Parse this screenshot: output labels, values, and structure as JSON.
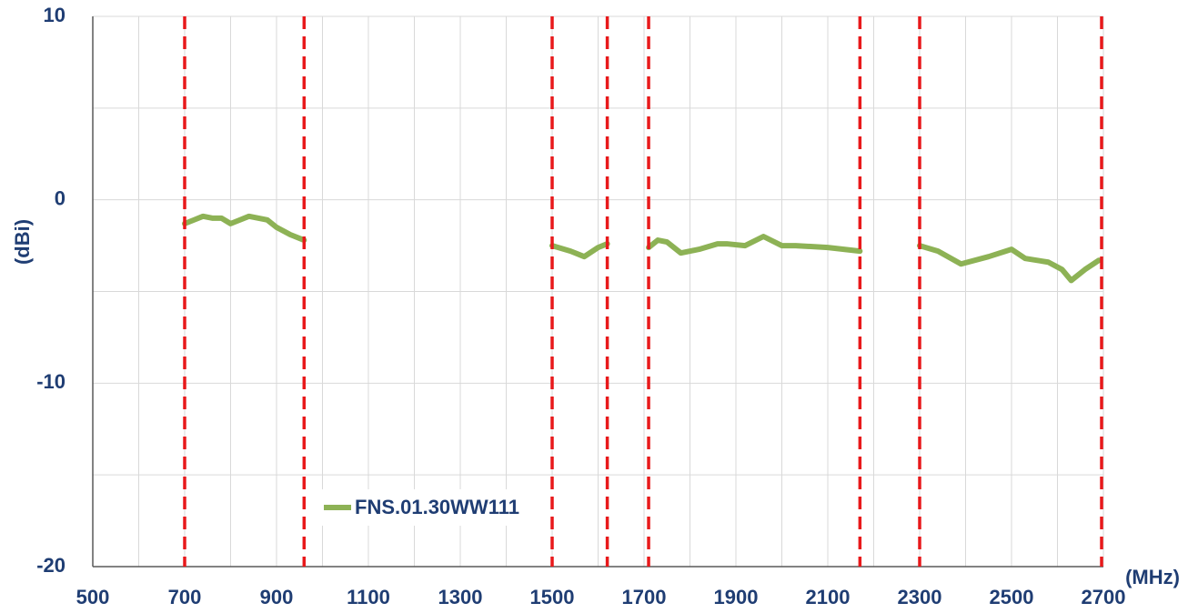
{
  "chart_data": {
    "type": "line",
    "ylabel": "(dBi)",
    "xlabel": "(MHz)",
    "x": [
      700,
      720,
      740,
      760,
      780,
      800,
      820,
      840,
      860,
      880,
      900,
      930,
      960,
      1230,
      1500,
      1540,
      1570,
      1600,
      1620,
      1665,
      1710,
      1730,
      1750,
      1780,
      1820,
      1860,
      1880,
      1920,
      1960,
      2000,
      2030,
      2100,
      2170,
      2235,
      2300,
      2340,
      2390,
      2450,
      2500,
      2530,
      2580,
      2610,
      2630,
      2660,
      2690
    ],
    "series": [
      {
        "name": "FNS.01.30WW111",
        "color": "#8db255",
        "values": [
          -1.3,
          -1.1,
          -0.9,
          -1.0,
          -1.0,
          -1.3,
          -1.1,
          -0.9,
          -1.0,
          -1.1,
          -1.5,
          -1.9,
          -2.2,
          null,
          -2.5,
          -2.8,
          -3.1,
          -2.6,
          -2.4,
          null,
          -2.6,
          -2.2,
          -2.3,
          -2.9,
          -2.7,
          -2.4,
          -2.4,
          -2.5,
          -2.0,
          -2.5,
          -2.5,
          -2.6,
          -2.8,
          null,
          -2.5,
          -2.8,
          -3.5,
          -3.1,
          -2.7,
          -3.2,
          -3.4,
          -3.8,
          -4.4,
          -3.8,
          -3.3
        ]
      }
    ],
    "band_edges": [
      700,
      960,
      1500,
      1620,
      1710,
      2170,
      2300,
      2700
    ],
    "band_edge_color": "#e8191b",
    "xlim": [
      500,
      2700
    ],
    "xticks": [
      500,
      700,
      900,
      1100,
      1300,
      1500,
      1700,
      1900,
      2100,
      2300,
      2500,
      2700
    ],
    "ylim": [
      -20,
      10
    ],
    "yticks": [
      -20,
      -10,
      0,
      10
    ],
    "grid": true
  }
}
